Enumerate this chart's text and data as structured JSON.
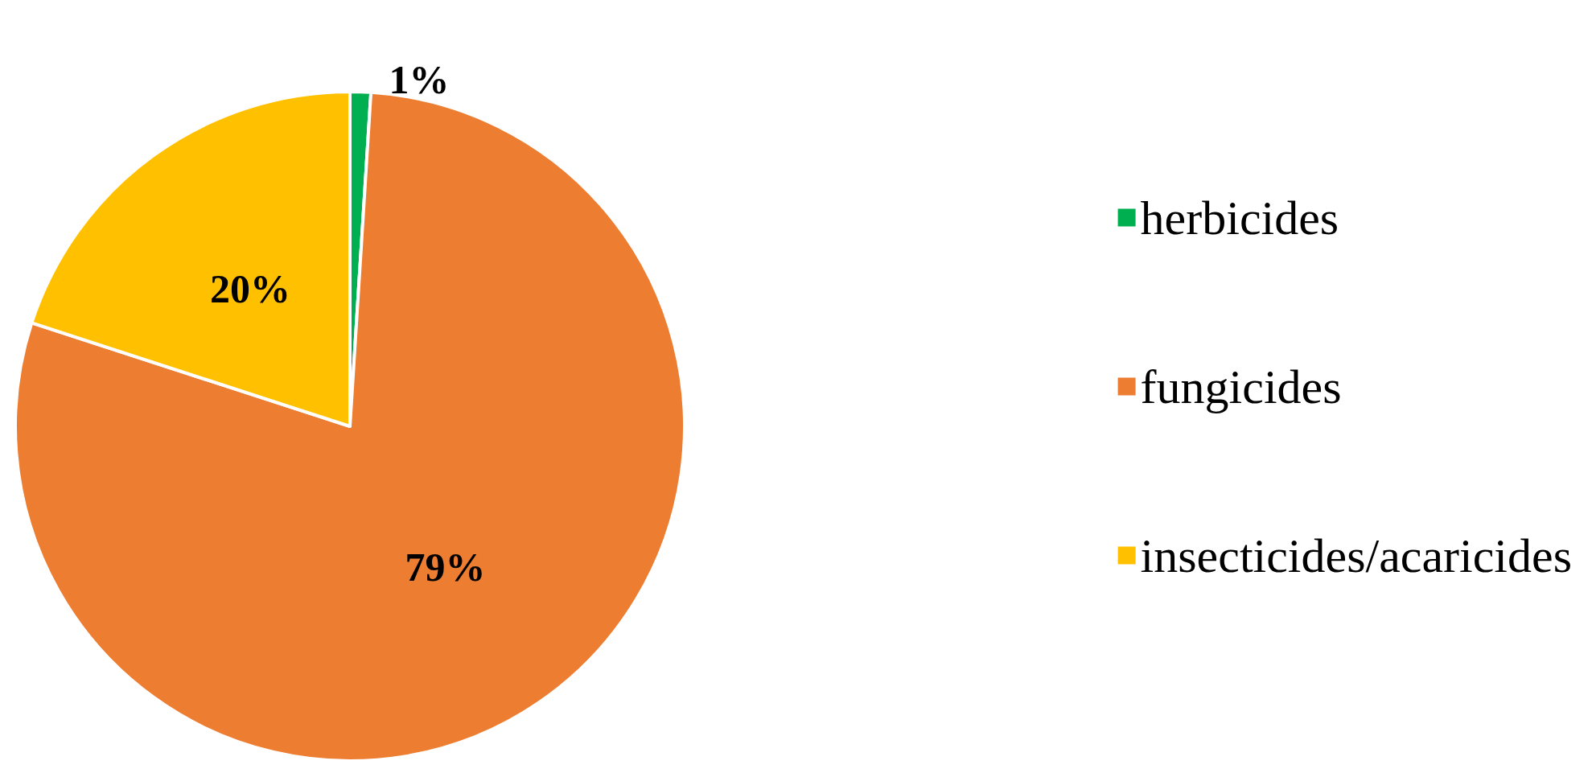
{
  "chart_data": {
    "type": "pie",
    "categories": [
      "herbicides",
      "fungicides",
      "insecticides/acaricides"
    ],
    "values": [
      1,
      79,
      20
    ],
    "colors": [
      "#00b050",
      "#ed7d31",
      "#ffc000"
    ],
    "value_labels": [
      "1%",
      "79%",
      "20%"
    ],
    "legend": "right"
  }
}
